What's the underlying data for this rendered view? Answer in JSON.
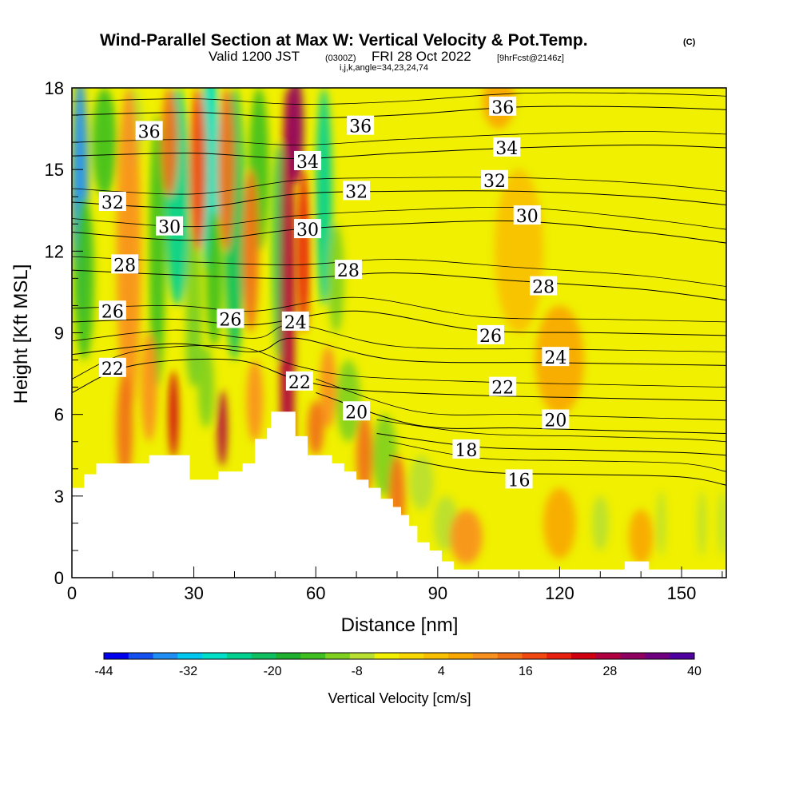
{
  "title": "Wind-Parallel Section at Max W: Vertical Velocity & Pot.Temp.",
  "copyright": "(C)",
  "subtitle_valid": "Valid 1200 JST",
  "subtitle_z": "(0300Z)",
  "subtitle_date": "FRI 28 Oct 2022",
  "subtitle_fcst": "[9hrFcst@2146z]",
  "subtitle_ijk": "i,j,k,angle=34,23,24,74",
  "chart_data": {
    "type": "heatmap",
    "xlabel": "Distance [nm]",
    "ylabel": "Height [Kft MSL]",
    "xlim": [
      0,
      161
    ],
    "ylim": [
      0,
      18
    ],
    "x_ticks": [
      "0",
      "30",
      "60",
      "90",
      "120",
      "150"
    ],
    "y_ticks": [
      "0",
      "3",
      "6",
      "9",
      "12",
      "15",
      "18"
    ],
    "x_tick_values": [
      0,
      30,
      60,
      90,
      120,
      150
    ],
    "y_tick_values": [
      0,
      3,
      6,
      9,
      12,
      15,
      18
    ],
    "terrain": [
      [
        0,
        3.3
      ],
      [
        3,
        3.3
      ],
      [
        3,
        3.8
      ],
      [
        6,
        3.8
      ],
      [
        6,
        4.2
      ],
      [
        19,
        4.2
      ],
      [
        19,
        4.5
      ],
      [
        29,
        4.5
      ],
      [
        29,
        3.6
      ],
      [
        36,
        3.6
      ],
      [
        36,
        3.9
      ],
      [
        42,
        3.9
      ],
      [
        42,
        4.2
      ],
      [
        45,
        4.2
      ],
      [
        45,
        5.1
      ],
      [
        48,
        5.1
      ],
      [
        48,
        5.5
      ],
      [
        49,
        5.5
      ],
      [
        49,
        6.1
      ],
      [
        55,
        6.1
      ],
      [
        55,
        5.2
      ],
      [
        58,
        5.2
      ],
      [
        58,
        4.5
      ],
      [
        64,
        4.5
      ],
      [
        64,
        4.2
      ],
      [
        67,
        4.2
      ],
      [
        67,
        3.9
      ],
      [
        70,
        3.9
      ],
      [
        70,
        3.6
      ],
      [
        73,
        3.6
      ],
      [
        73,
        3.3
      ],
      [
        76,
        3.3
      ],
      [
        76,
        2.9
      ],
      [
        79,
        2.9
      ],
      [
        79,
        2.6
      ],
      [
        81,
        2.6
      ],
      [
        81,
        2.3
      ],
      [
        83,
        2.3
      ],
      [
        83,
        1.9
      ],
      [
        85,
        1.9
      ],
      [
        85,
        1.3
      ],
      [
        88,
        1.3
      ],
      [
        88,
        1.0
      ],
      [
        91,
        1.0
      ],
      [
        91,
        0.6
      ],
      [
        94,
        0.6
      ],
      [
        94,
        0.3
      ],
      [
        136,
        0.3
      ],
      [
        136,
        0.6
      ],
      [
        142,
        0.6
      ],
      [
        142,
        0.3
      ],
      [
        161,
        0.3
      ]
    ],
    "theta_contours": [
      {
        "label": "16",
        "pts": [
          [
            78,
            4.5
          ],
          [
            100,
            3.9
          ],
          [
            125,
            3.8
          ],
          [
            150,
            3.7
          ],
          [
            161,
            3.4
          ]
        ],
        "label_at": [
          110,
          3.6
        ]
      },
      {
        "label": "18",
        "pts": [
          [
            75,
            5.3
          ],
          [
            100,
            4.8
          ],
          [
            125,
            4.7
          ],
          [
            150,
            4.6
          ],
          [
            161,
            4.5
          ]
        ],
        "label_at": [
          97,
          4.7
        ]
      },
      {
        "label": "20",
        "pts": [
          [
            60,
            6.8
          ],
          [
            85,
            5.6
          ],
          [
            110,
            5.5
          ],
          [
            135,
            5.4
          ],
          [
            161,
            5.3
          ]
        ],
        "label_at": [
          70,
          6.1
        ]
      },
      {
        "label": "22",
        "pts": [
          [
            0,
            6.8
          ],
          [
            15,
            7.8
          ],
          [
            40,
            8.0
          ],
          [
            55,
            7.3
          ],
          [
            70,
            6.9
          ],
          [
            100,
            6.7
          ],
          [
            130,
            6.6
          ],
          [
            161,
            6.5
          ]
        ],
        "label_at": [
          10,
          7.7
        ]
      },
      {
        "label": "24",
        "pts": [
          [
            0,
            8.2
          ],
          [
            25,
            8.6
          ],
          [
            45,
            8.3
          ],
          [
            55,
            8.8
          ],
          [
            80,
            8.0
          ],
          [
            120,
            7.9
          ],
          [
            161,
            7.8
          ]
        ],
        "label_at": [
          55,
          9.4
        ]
      },
      {
        "label": "26",
        "pts": [
          [
            0,
            9.4
          ],
          [
            25,
            9.5
          ],
          [
            45,
            9.3
          ],
          [
            70,
            9.8
          ],
          [
            100,
            9.1
          ],
          [
            130,
            9.0
          ],
          [
            161,
            8.9
          ]
        ],
        "label_at": [
          39,
          9.5
        ]
      },
      {
        "label": "28",
        "pts": [
          [
            0,
            11.3
          ],
          [
            30,
            11.1
          ],
          [
            55,
            11.0
          ],
          [
            80,
            11.2
          ],
          [
            110,
            10.9
          ],
          [
            140,
            10.6
          ],
          [
            161,
            10.2
          ]
        ],
        "label_at": [
          13,
          11.5
        ]
      },
      {
        "label": "30",
        "pts": [
          [
            0,
            12.7
          ],
          [
            30,
            12.4
          ],
          [
            55,
            12.8
          ],
          [
            80,
            13.0
          ],
          [
            110,
            13.1
          ],
          [
            140,
            12.7
          ],
          [
            161,
            12.3
          ]
        ],
        "label_at": [
          24,
          12.9
        ]
      },
      {
        "label": "32",
        "pts": [
          [
            0,
            13.8
          ],
          [
            30,
            13.6
          ],
          [
            55,
            14.1
          ],
          [
            80,
            14.2
          ],
          [
            110,
            14.2
          ],
          [
            140,
            14.0
          ],
          [
            161,
            13.7
          ]
        ],
        "label_at": [
          10,
          13.8
        ]
      },
      {
        "label": "34",
        "pts": [
          [
            0,
            15.5
          ],
          [
            30,
            15.6
          ],
          [
            55,
            15.4
          ],
          [
            80,
            15.6
          ],
          [
            110,
            15.8
          ],
          [
            140,
            15.9
          ],
          [
            161,
            15.8
          ]
        ],
        "label_at": [
          58,
          15.3
        ]
      },
      {
        "label": "36",
        "pts": [
          [
            0,
            17.0
          ],
          [
            30,
            17.1
          ],
          [
            55,
            16.9
          ],
          [
            80,
            17.0
          ],
          [
            110,
            17.3
          ],
          [
            140,
            17.3
          ],
          [
            161,
            17.2
          ]
        ],
        "label_at": [
          19,
          16.4
        ]
      }
    ],
    "extra_labels": [
      {
        "label": "36",
        "at": [
          71,
          16.6
        ]
      },
      {
        "label": "34",
        "at": [
          107,
          15.8
        ]
      },
      {
        "label": "32",
        "at": [
          70,
          14.2
        ]
      },
      {
        "label": "32",
        "at": [
          104,
          14.6
        ]
      },
      {
        "label": "30",
        "at": [
          58,
          12.8
        ]
      },
      {
        "label": "30",
        "at": [
          112,
          13.3
        ]
      },
      {
        "label": "28",
        "at": [
          68,
          11.3
        ]
      },
      {
        "label": "28",
        "at": [
          116,
          10.7
        ]
      },
      {
        "label": "26",
        "at": [
          10,
          9.8
        ]
      },
      {
        "label": "26",
        "at": [
          103,
          8.9
        ]
      },
      {
        "label": "24",
        "at": [
          119,
          8.1
        ]
      },
      {
        "label": "22",
        "at": [
          56,
          7.2
        ]
      },
      {
        "label": "22",
        "at": [
          106,
          7.0
        ]
      },
      {
        "label": "20",
        "at": [
          119,
          5.8
        ]
      },
      {
        "label": "36",
        "at": [
          106,
          17.3
        ]
      }
    ],
    "w_features": [
      {
        "x": 2,
        "y": 14,
        "rx": 2,
        "ry": 4.5,
        "w": -34
      },
      {
        "x": 3,
        "y": 11,
        "rx": 2.5,
        "ry": 3,
        "w": -14
      },
      {
        "x": 8,
        "y": 16,
        "rx": 3,
        "ry": 2,
        "w": -14
      },
      {
        "x": 15,
        "y": 16.5,
        "rx": 2.5,
        "ry": 1.5,
        "w": -8
      },
      {
        "x": 21,
        "y": 12,
        "rx": 2,
        "ry": 5,
        "w": -16
      },
      {
        "x": 26,
        "y": 14,
        "rx": 3,
        "ry": 4,
        "w": -26
      },
      {
        "x": 30,
        "y": 10,
        "rx": 2,
        "ry": 3,
        "w": -10
      },
      {
        "x": 34,
        "y": 15,
        "rx": 2.5,
        "ry": 4,
        "w": -28
      },
      {
        "x": 35,
        "y": 11,
        "rx": 2,
        "ry": 2.5,
        "w": -14
      },
      {
        "x": 40,
        "y": 13,
        "rx": 2.5,
        "ry": 5,
        "w": -20
      },
      {
        "x": 46,
        "y": 15,
        "rx": 2.5,
        "ry": 3,
        "w": -16
      },
      {
        "x": 51,
        "y": 12,
        "rx": 1.6,
        "ry": 4,
        "w": -20
      },
      {
        "x": 62,
        "y": 14,
        "rx": 2,
        "ry": 4,
        "w": -24
      },
      {
        "x": 65,
        "y": 11,
        "rx": 2,
        "ry": 2,
        "w": -10
      },
      {
        "x": 33,
        "y": 7,
        "rx": 2,
        "ry": 1.5,
        "w": -12
      },
      {
        "x": 30,
        "y": 8.5,
        "rx": 2,
        "ry": 1.5,
        "w": -12
      },
      {
        "x": 68,
        "y": 6.5,
        "rx": 3,
        "ry": 1.5,
        "w": -10
      },
      {
        "x": 77,
        "y": 4.5,
        "rx": 3,
        "ry": 1.5,
        "w": -10
      },
      {
        "x": 86,
        "y": 3.5,
        "rx": 3,
        "ry": 1,
        "w": -8
      },
      {
        "x": 92,
        "y": 2,
        "rx": 3,
        "ry": 1,
        "w": -6
      },
      {
        "x": 130,
        "y": 2,
        "rx": 2,
        "ry": 1,
        "w": -6
      },
      {
        "x": 145,
        "y": 2,
        "rx": 1,
        "ry": 1.2,
        "w": -8
      },
      {
        "x": 155,
        "y": 2,
        "rx": 1,
        "ry": 1.2,
        "w": -8
      },
      {
        "x": 160,
        "y": 2,
        "rx": 1,
        "ry": 1.2,
        "w": -8
      },
      {
        "x": 126,
        "y": 17,
        "rx": 2,
        "ry": 1,
        "w": -4
      },
      {
        "x": 14,
        "y": 12,
        "rx": 3,
        "ry": 6,
        "w": 10
      },
      {
        "x": 24,
        "y": 16,
        "rx": 2,
        "ry": 2,
        "w": 12
      },
      {
        "x": 31,
        "y": 15,
        "rx": 2,
        "ry": 3,
        "w": 16
      },
      {
        "x": 38,
        "y": 15,
        "rx": 2,
        "ry": 3,
        "w": 14
      },
      {
        "x": 44,
        "y": 12,
        "rx": 2,
        "ry": 3,
        "w": 12
      },
      {
        "x": 53,
        "y": 9,
        "rx": 1.8,
        "ry": 9,
        "w": 28
      },
      {
        "x": 55,
        "y": 16.5,
        "rx": 2,
        "ry": 2,
        "w": 32
      },
      {
        "x": 57,
        "y": 12,
        "rx": 1.5,
        "ry": 3,
        "w": 20
      },
      {
        "x": 25,
        "y": 6,
        "rx": 1.2,
        "ry": 1.6,
        "w": 24
      },
      {
        "x": 37,
        "y": 5.5,
        "rx": 1.2,
        "ry": 1.4,
        "w": 26
      },
      {
        "x": 13,
        "y": 5.5,
        "rx": 2,
        "ry": 2,
        "w": 12
      },
      {
        "x": 19,
        "y": 7,
        "rx": 2,
        "ry": 2,
        "w": 10
      },
      {
        "x": 45,
        "y": 6.5,
        "rx": 2,
        "ry": 1.5,
        "w": 10
      },
      {
        "x": 60,
        "y": 5.5,
        "rx": 2,
        "ry": 1,
        "w": 12
      },
      {
        "x": 63,
        "y": 7,
        "rx": 2,
        "ry": 1.5,
        "w": 10
      },
      {
        "x": 72,
        "y": 4.5,
        "rx": 2,
        "ry": 1.5,
        "w": 12
      },
      {
        "x": 80,
        "y": 3,
        "rx": 2,
        "ry": 1.5,
        "w": 12
      },
      {
        "x": 97,
        "y": 1.5,
        "rx": 4,
        "ry": 1,
        "w": 10
      },
      {
        "x": 120,
        "y": 2,
        "rx": 4,
        "ry": 1.3,
        "w": 8
      },
      {
        "x": 140,
        "y": 1.5,
        "rx": 3,
        "ry": 1,
        "w": 8
      },
      {
        "x": 105,
        "y": 17.5,
        "rx": 4,
        "ry": 1,
        "w": 8
      },
      {
        "x": 110,
        "y": 12,
        "rx": 6,
        "ry": 3,
        "w": 4
      },
      {
        "x": 120,
        "y": 8,
        "rx": 6,
        "ry": 2,
        "w": 6
      }
    ]
  },
  "colorbar": {
    "label": "Vertical Velocity [cm/s]",
    "tick_labels": [
      "-44",
      "-32",
      "-20",
      "-8",
      "4",
      "16",
      "28",
      "40"
    ],
    "min": -44,
    "max": 40,
    "colors": [
      "#0000ee",
      "#1450f0",
      "#1f8ff5",
      "#00c8f0",
      "#00e0c8",
      "#00d090",
      "#10c060",
      "#20b030",
      "#40c020",
      "#80d020",
      "#b8e030",
      "#f0f000",
      "#f8d800",
      "#f8c000",
      "#f8a800",
      "#f89020",
      "#f07018",
      "#f04810",
      "#e82010",
      "#d00010",
      "#b00040",
      "#900060",
      "#700080",
      "#5000a0"
    ]
  }
}
